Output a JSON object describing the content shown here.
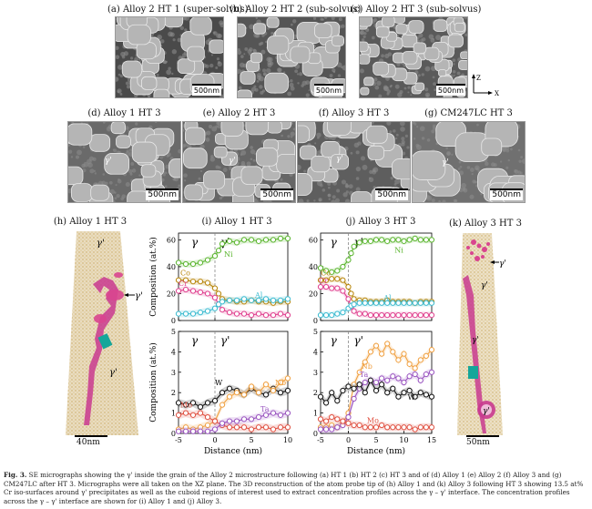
{
  "panels": {
    "a": {
      "label": "(a) Alloy 2 HT 1 (super-solvus)",
      "scale": "500nm"
    },
    "b": {
      "label": "(b) Alloy 2 HT 2 (sub-solvus)",
      "scale": "500nm"
    },
    "c": {
      "label": "(c) Alloy 2 HT 3 (sub-solvus)",
      "scale": "500nm"
    },
    "d": {
      "label": "(d) Alloy 1 HT 3",
      "scale": "500nm",
      "phase": "γ'"
    },
    "e": {
      "label": "(e) Alloy 2 HT 3",
      "scale": "500nm",
      "phase": "γ'"
    },
    "f": {
      "label": "(f) Alloy 3 HT 3",
      "scale": "500nm",
      "phase": "γ'"
    },
    "g": {
      "label": "(g) CM247LC HT 3",
      "scale": "500nm",
      "phase": "γ'"
    },
    "h": {
      "label": "(h) Alloy 1 HT 3",
      "scale": "40nm",
      "phase_top": "γ'",
      "phase_arrow": "γ'",
      "phase_bottom": "γ'"
    },
    "k": {
      "label": "(k) Alloy 3 HT 3",
      "scale": "50nm",
      "phase_top": "γ'",
      "phase_arrow": "γ'",
      "phase_mid": "γ'",
      "phase_bottom": "γ'"
    }
  },
  "axes_text": {
    "zaxis": "Z",
    "xaxis": "X"
  },
  "chart_data": [
    {
      "id": "i-top",
      "type": "line",
      "title": "(i) Alloy 1 HT 3",
      "ylabel": "Composition (at.%)",
      "xlim": [
        -5,
        10
      ],
      "ylim": [
        0,
        65
      ],
      "yticks": [
        0,
        20,
        40,
        60
      ],
      "xticks": [
        -5,
        0,
        5,
        10
      ],
      "phases": [
        "γ",
        "γ'"
      ],
      "series": [
        {
          "name": "Ni",
          "color": "#5ab52e",
          "x": [
            -5,
            -4,
            -3,
            -2,
            -1,
            0,
            0.5,
            1,
            2,
            3,
            4,
            5,
            6,
            7,
            8,
            9,
            10
          ],
          "values": [
            43,
            42,
            42,
            43,
            45,
            48,
            52,
            57,
            59,
            58,
            60,
            60,
            59,
            60,
            60,
            61,
            61
          ]
        },
        {
          "name": "Co",
          "color": "#b8860b",
          "x": [
            -5,
            -4,
            -3,
            -2,
            -1,
            0,
            0.5,
            1,
            2,
            3,
            4,
            5,
            6,
            7,
            8,
            9,
            10
          ],
          "values": [
            30,
            30,
            29,
            29,
            28,
            24,
            20,
            16,
            15,
            14,
            14,
            15,
            14,
            14,
            13,
            14,
            14
          ]
        },
        {
          "name": "Cr",
          "color": "#e0408f",
          "x": [
            -5,
            -4,
            -3,
            -2,
            -1,
            0,
            0.5,
            1,
            2,
            3,
            4,
            5,
            6,
            7,
            8,
            9,
            10
          ],
          "values": [
            22,
            23,
            22,
            21,
            20,
            17,
            12,
            8,
            6,
            5,
            5,
            4,
            5,
            4,
            4,
            5,
            4
          ]
        },
        {
          "name": "Al",
          "color": "#3bbbd0",
          "x": [
            -5,
            -4,
            -3,
            -2,
            -1,
            0,
            0.5,
            1,
            2,
            3,
            4,
            5,
            6,
            7,
            8,
            9,
            10
          ],
          "values": [
            5,
            5,
            5,
            6,
            7,
            9,
            12,
            14,
            15,
            15,
            16,
            15,
            15,
            16,
            15,
            15,
            16
          ]
        }
      ]
    },
    {
      "id": "i-bottom",
      "type": "line",
      "ylabel": "Composition (at.%)",
      "xlabel": "Distance (nm)",
      "xlim": [
        -5,
        10
      ],
      "ylim": [
        0,
        5
      ],
      "yticks": [
        0,
        1,
        2,
        3,
        4,
        5
      ],
      "xticks": [
        -5,
        0,
        5,
        10
      ],
      "phases": [
        "γ",
        "γ'"
      ],
      "series": [
        {
          "name": "W",
          "color": "#111111",
          "x": [
            -5,
            -4,
            -3,
            -2,
            -1,
            0,
            1,
            2,
            3,
            4,
            5,
            6,
            7,
            8,
            9,
            10
          ],
          "values": [
            1.5,
            1.4,
            1.5,
            1.3,
            1.5,
            1.6,
            2.0,
            2.2,
            2.1,
            1.9,
            2.2,
            2.0,
            1.9,
            2.2,
            2.0,
            2.1
          ]
        },
        {
          "name": "Nb",
          "color": "#f0a040",
          "x": [
            -5,
            -4,
            -3,
            -2,
            -1,
            0,
            1,
            2,
            3,
            4,
            5,
            6,
            7,
            8,
            9,
            10
          ],
          "values": [
            0.2,
            0.3,
            0.2,
            0.3,
            0.4,
            0.6,
            1.4,
            1.8,
            2.0,
            1.9,
            2.3,
            2.0,
            2.4,
            2.1,
            2.5,
            2.7
          ]
        },
        {
          "name": "Mo",
          "color": "#e05040",
          "x": [
            -5,
            -4,
            -3,
            -2,
            -1,
            0,
            1,
            2,
            3,
            4,
            5,
            6,
            7,
            8,
            9,
            10
          ],
          "values": [
            0.9,
            1.0,
            0.9,
            1.0,
            0.8,
            0.6,
            0.4,
            0.3,
            0.3,
            0.3,
            0.2,
            0.3,
            0.3,
            0.2,
            0.3,
            0.3
          ]
        },
        {
          "name": "Ta",
          "color": "#9a55c0",
          "x": [
            -5,
            -4,
            -3,
            -2,
            -1,
            0,
            1,
            2,
            3,
            4,
            5,
            6,
            7,
            8,
            9,
            10
          ],
          "values": [
            0.1,
            0.1,
            0.1,
            0.1,
            0.1,
            0.2,
            0.5,
            0.6,
            0.6,
            0.7,
            0.7,
            0.8,
            0.9,
            1.0,
            0.9,
            1.0
          ]
        }
      ]
    },
    {
      "id": "j-top",
      "type": "line",
      "title": "(j) Alloy 3 HT 3",
      "xlim": [
        -5,
        15
      ],
      "ylim": [
        0,
        65
      ],
      "yticks": [
        0,
        20,
        40,
        60
      ],
      "xticks": [
        -5,
        0,
        5,
        10,
        15
      ],
      "phases": [
        "γ",
        "γ'"
      ],
      "series": [
        {
          "name": "Ni",
          "color": "#5ab52e",
          "x": [
            -5,
            -4,
            -3,
            -2,
            -1,
            0,
            0.5,
            1,
            2,
            3,
            4,
            5,
            6,
            7,
            8,
            9,
            10,
            11,
            12,
            13,
            14,
            15
          ],
          "values": [
            39,
            37,
            36,
            37,
            40,
            45,
            50,
            55,
            58,
            59,
            59,
            60,
            60,
            59,
            60,
            60,
            59,
            60,
            61,
            60,
            60,
            60
          ]
        },
        {
          "name": "Co",
          "color": "#b8860b",
          "x": [
            -5,
            -4,
            -3,
            -2,
            -1,
            0,
            0.5,
            1,
            2,
            3,
            4,
            5,
            6,
            7,
            8,
            9,
            10,
            11,
            12,
            13,
            14,
            15
          ],
          "values": [
            30,
            30,
            31,
            31,
            30,
            25,
            20,
            16,
            15,
            15,
            14,
            14,
            14,
            15,
            14,
            14,
            14,
            14,
            13,
            14,
            14,
            14
          ]
        },
        {
          "name": "Cr",
          "color": "#e0408f",
          "x": [
            -5,
            -4,
            -3,
            -2,
            -1,
            0,
            0.5,
            1,
            2,
            3,
            4,
            5,
            6,
            7,
            8,
            9,
            10,
            11,
            12,
            13,
            14,
            15
          ],
          "values": [
            25,
            25,
            24,
            24,
            22,
            16,
            10,
            7,
            5,
            5,
            4,
            4,
            4,
            4,
            4,
            4,
            4,
            4,
            4,
            4,
            4,
            4
          ]
        },
        {
          "name": "Al",
          "color": "#3bbbd0",
          "x": [
            -5,
            -4,
            -3,
            -2,
            -1,
            0,
            0.5,
            1,
            2,
            3,
            4,
            5,
            6,
            7,
            8,
            9,
            10,
            11,
            12,
            13,
            14,
            15
          ],
          "values": [
            4,
            4,
            4,
            5,
            6,
            9,
            11,
            12,
            13,
            13,
            13,
            13,
            13,
            13,
            13,
            13,
            13,
            13,
            13,
            13,
            13,
            13
          ]
        }
      ]
    },
    {
      "id": "j-bottom",
      "type": "line",
      "xlabel": "Distance (nm)",
      "xlim": [
        -5,
        15
      ],
      "ylim": [
        0,
        5
      ],
      "yticks": [
        0,
        1,
        2,
        3,
        4,
        5
      ],
      "xticks": [
        -5,
        0,
        5,
        10,
        15
      ],
      "phases": [
        "γ",
        "γ'"
      ],
      "series": [
        {
          "name": "Nb",
          "color": "#f0a040",
          "x": [
            -5,
            -4,
            -3,
            -2,
            -1,
            0,
            1,
            2,
            3,
            4,
            5,
            6,
            7,
            8,
            9,
            10,
            11,
            12,
            13,
            14,
            15
          ],
          "values": [
            0.3,
            0.3,
            0.4,
            0.3,
            0.5,
            1.0,
            2.4,
            3.0,
            3.5,
            4.0,
            4.3,
            3.9,
            4.4,
            4.0,
            3.6,
            3.9,
            3.4,
            3.2,
            3.6,
            3.8,
            4.1
          ]
        },
        {
          "name": "Ta",
          "color": "#9a55c0",
          "x": [
            -5,
            -4,
            -3,
            -2,
            -1,
            0,
            1,
            2,
            3,
            4,
            5,
            6,
            7,
            8,
            9,
            10,
            11,
            12,
            13,
            14,
            15
          ],
          "values": [
            0.2,
            0.2,
            0.2,
            0.3,
            0.4,
            0.8,
            1.7,
            2.2,
            2.5,
            2.6,
            2.5,
            2.7,
            2.6,
            2.8,
            2.7,
            2.5,
            2.8,
            2.9,
            2.6,
            2.9,
            3.0
          ]
        },
        {
          "name": "W",
          "color": "#111111",
          "x": [
            -5,
            -4,
            -3,
            -2,
            -1,
            0,
            1,
            2,
            3,
            4,
            5,
            6,
            7,
            8,
            9,
            10,
            11,
            12,
            13,
            14,
            15
          ],
          "values": [
            1.8,
            1.5,
            2.0,
            1.6,
            2.1,
            2.3,
            2.2,
            2.4,
            2.0,
            2.6,
            2.1,
            2.4,
            2.0,
            2.2,
            1.8,
            2.0,
            2.1,
            1.8,
            2.0,
            1.9,
            1.8
          ]
        },
        {
          "name": "Mo",
          "color": "#e05040",
          "x": [
            -5,
            -4,
            -3,
            -2,
            -1,
            0,
            1,
            2,
            3,
            4,
            5,
            6,
            7,
            8,
            9,
            10,
            11,
            12,
            13,
            14,
            15
          ],
          "values": [
            0.7,
            0.6,
            0.8,
            0.7,
            0.6,
            0.5,
            0.4,
            0.4,
            0.3,
            0.3,
            0.3,
            0.4,
            0.3,
            0.3,
            0.3,
            0.3,
            0.3,
            0.2,
            0.3,
            0.3,
            0.3
          ]
        }
      ]
    }
  ],
  "caption": {
    "prefix": "Fig. 3.",
    "text": "SE micrographs showing the γ' inside the grain of the Alloy 2 microstructure following (a) HT 1 (b) HT 2 (c) HT 3 and of (d) Alloy 1 (e) Alloy 2 (f) Alloy 3 and (g) CM247LC after HT 3. Micrographs were all taken on the XZ plane. The 3D reconstruction of the atom probe tip of (h) Alloy 1 and (k) Alloy 3 following HT 3 showing 13.5 at% Cr iso-surfaces around γ' precipitates as well as the cuboid regions of interest used to extract concentration profiles across the γ – γ' interface. The concentration profiles across the γ – γ' interface are shown for (i) Alloy 1 and (j) Alloy 3."
  }
}
